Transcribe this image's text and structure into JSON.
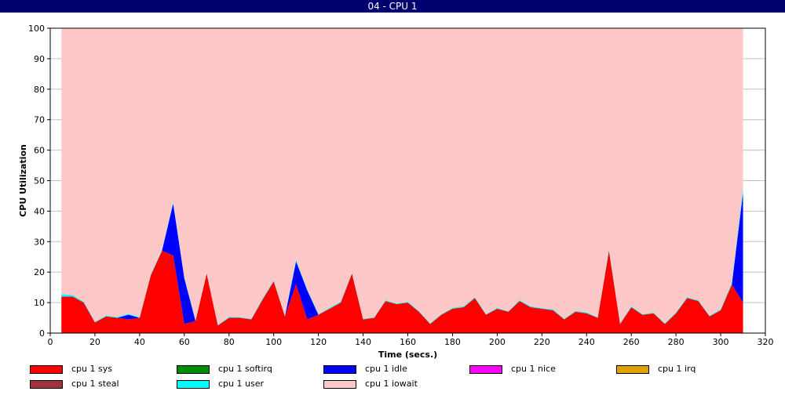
{
  "window": {
    "title": "04 - CPU 1"
  },
  "chart_data": {
    "type": "area",
    "stacked": true,
    "xlabel": "Time (secs.)",
    "ylabel": "CPU Utilization",
    "xlim": [
      0,
      320
    ],
    "ylim": [
      0,
      100
    ],
    "xticks": [
      0,
      20,
      40,
      60,
      80,
      100,
      120,
      140,
      160,
      180,
      200,
      220,
      240,
      260,
      280,
      300,
      320
    ],
    "yticks": [
      0,
      10,
      20,
      30,
      40,
      50,
      60,
      70,
      80,
      90,
      100
    ],
    "grid": true,
    "legend_position": "bottom",
    "x": [
      5,
      10,
      15,
      20,
      25,
      30,
      35,
      40,
      45,
      50,
      55,
      60,
      65,
      70,
      75,
      80,
      85,
      90,
      95,
      100,
      105,
      110,
      115,
      120,
      125,
      130,
      135,
      140,
      145,
      150,
      155,
      160,
      165,
      170,
      175,
      180,
      185,
      190,
      195,
      200,
      205,
      210,
      215,
      220,
      225,
      230,
      235,
      240,
      245,
      250,
      255,
      260,
      265,
      270,
      275,
      280,
      285,
      290,
      295,
      300,
      305,
      310
    ],
    "series": [
      {
        "name": "cpu 1 sys",
        "color": "#ff0000",
        "values": [
          12,
          12,
          10,
          3.5,
          5.5,
          5,
          4.5,
          5,
          19,
          27,
          25.5,
          3,
          4,
          19.5,
          2.5,
          5,
          5,
          4.5,
          11,
          17,
          5.5,
          16,
          4.5,
          6,
          8,
          10,
          19.5,
          4.5,
          5,
          10.5,
          9.5,
          10,
          7,
          3,
          6,
          8,
          8.5,
          11.5,
          6,
          8,
          7,
          10.5,
          8.5,
          8,
          7.5,
          4.5,
          7,
          6.5,
          5,
          27,
          3,
          8.5,
          6,
          6.5,
          3,
          6.5,
          11.5,
          10.5,
          5.5,
          7.5,
          16,
          10
        ]
      },
      {
        "name": "cpu 1 softirq",
        "color": "#008c00",
        "values": [
          0,
          0,
          0,
          0,
          0,
          0,
          0,
          0,
          0,
          0,
          0,
          0,
          0,
          0,
          0,
          0,
          0,
          0,
          0,
          0,
          0,
          0,
          0,
          0,
          0,
          0,
          0,
          0,
          0,
          0,
          0,
          0,
          0,
          0,
          0,
          0,
          0,
          0,
          0,
          0,
          0,
          0,
          0,
          0,
          0,
          0,
          0,
          0,
          0,
          0,
          0,
          0,
          0,
          0,
          0,
          0,
          0,
          0,
          0,
          0,
          0,
          0
        ]
      },
      {
        "name": "cpu 1 idle",
        "color": "#0000ff",
        "values": [
          0,
          0,
          0,
          0,
          0,
          0,
          1.5,
          0,
          0,
          0,
          17,
          15,
          0,
          0,
          0,
          0,
          0,
          0,
          0,
          0,
          0,
          7.5,
          9.5,
          0,
          0,
          0,
          0,
          0,
          0,
          0,
          0,
          0,
          0,
          0,
          0,
          0,
          0,
          0,
          0,
          0,
          0,
          0,
          0,
          0,
          0,
          0,
          0,
          0,
          0,
          0,
          0,
          0,
          0,
          0,
          0,
          0,
          0,
          0,
          0,
          0,
          0,
          36
        ]
      },
      {
        "name": "cpu 1 nice",
        "color": "#ff00ff",
        "values": [
          0,
          0,
          0,
          0,
          0,
          0,
          0,
          0,
          0,
          0,
          0,
          0,
          0,
          0,
          0,
          0,
          0,
          0,
          0,
          0,
          0,
          0,
          0,
          0,
          0,
          0,
          0,
          0,
          0,
          0,
          0,
          0,
          0,
          0,
          0,
          0,
          0,
          0,
          0,
          0,
          0,
          0,
          0,
          0,
          0,
          0,
          0,
          0,
          0,
          0,
          0,
          0,
          0,
          0,
          0,
          0,
          0,
          0,
          0,
          0,
          0,
          0
        ]
      },
      {
        "name": "cpu 1 irq",
        "color": "#e0a000",
        "values": [
          0,
          0,
          0,
          0,
          0,
          0,
          0,
          0,
          0,
          0,
          0,
          0,
          0,
          0,
          0,
          0,
          0,
          0,
          0,
          0,
          0,
          0,
          0,
          0,
          0,
          0,
          0,
          0,
          0,
          0,
          0,
          0,
          0,
          0,
          0,
          0,
          0,
          0,
          0,
          0,
          0,
          0,
          0,
          0,
          0,
          0,
          0,
          0,
          0,
          0,
          0,
          0,
          0,
          0,
          0,
          0,
          0,
          0,
          0,
          0,
          0,
          0
        ]
      },
      {
        "name": "cpu 1 steal",
        "color": "#a0323c",
        "values": [
          0,
          0,
          0,
          0,
          0,
          0,
          0,
          0,
          0,
          0,
          0,
          0,
          0,
          0,
          0,
          0,
          0,
          0,
          0,
          0,
          0,
          0,
          0,
          0,
          0,
          0,
          0,
          0,
          0,
          0,
          0,
          0,
          0,
          0,
          0,
          0,
          0,
          0,
          0,
          0,
          0,
          0,
          0,
          0,
          0,
          0,
          0,
          0,
          0,
          0,
          0,
          0,
          0,
          0,
          0,
          0,
          0,
          0,
          0,
          0,
          0,
          0
        ]
      },
      {
        "name": "cpu 1 user",
        "color": "#00ffff",
        "values": [
          0.8,
          0.5,
          0.3,
          0.2,
          0.3,
          0.3,
          0.3,
          0.2,
          0.3,
          0.3,
          0.5,
          0.3,
          0.2,
          0.3,
          0.2,
          0.3,
          0.2,
          0.2,
          0.3,
          0.3,
          0.2,
          0.5,
          0.3,
          0.2,
          0.3,
          0.3,
          0.3,
          0.2,
          0.2,
          0.3,
          0.2,
          0.3,
          0.2,
          0.2,
          0.2,
          0.3,
          0.3,
          0.3,
          0.2,
          0.3,
          0.2,
          0.3,
          0.3,
          0.2,
          0.3,
          0.2,
          0.3,
          0.3,
          0.2,
          0.5,
          0.2,
          0.3,
          0.2,
          0.2,
          0.2,
          0.3,
          0.3,
          0.3,
          0.2,
          0.3,
          0.5,
          1.5
        ]
      },
      {
        "name": "cpu 1 iowait",
        "color": "#ffc8c8",
        "values": [
          87.2,
          87.5,
          89.7,
          96.3,
          94.2,
          94.7,
          93.7,
          94.8,
          80.7,
          72.7,
          57,
          81.7,
          95.8,
          80.2,
          97.3,
          94.7,
          94.8,
          95.3,
          88.7,
          82.7,
          94.3,
          76,
          85.7,
          93.8,
          91.7,
          89.7,
          80.2,
          95.3,
          94.8,
          89.2,
          90.3,
          89.7,
          92.8,
          96.8,
          93.8,
          91.7,
          91.2,
          88.2,
          93.8,
          91.7,
          92.8,
          89.2,
          91.2,
          91.8,
          92.2,
          95.3,
          92.7,
          93.2,
          94.8,
          72.5,
          96.8,
          91.2,
          93.8,
          93.3,
          96.8,
          93.2,
          88.2,
          89.2,
          94.3,
          92.2,
          83.5,
          52.5
        ]
      }
    ]
  }
}
